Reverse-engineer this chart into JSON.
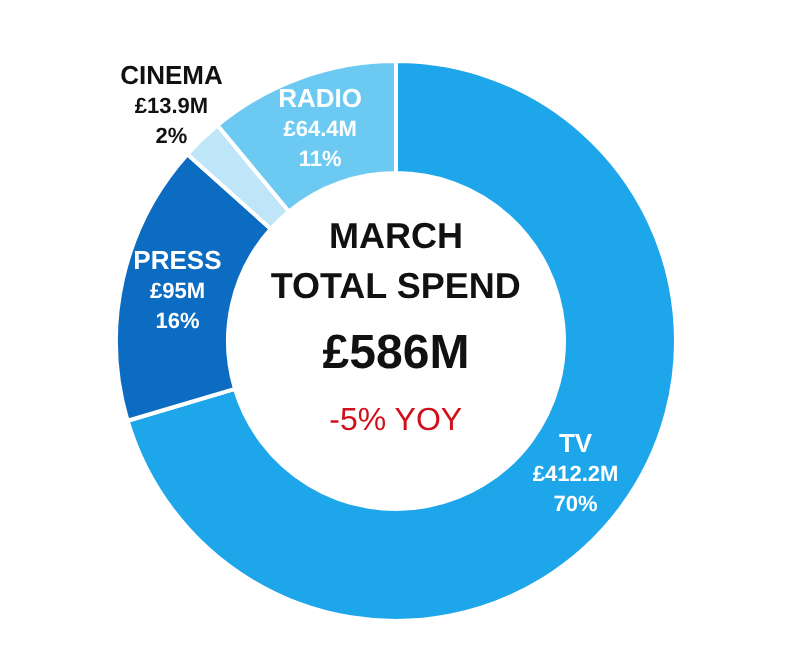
{
  "chart_data": {
    "type": "donut",
    "title": "MARCH\nTOTAL SPEND",
    "subtitle": "£586M",
    "annotations": [
      "-5% YOY",
      {
        "text": "70%",
        "x": "TV"
      },
      {
        "text": "16%",
        "x": "PRESS"
      },
      {
        "text": "2%",
        "x": "CINEMA"
      },
      {
        "text": "11%",
        "x": "RADIO"
      }
    ],
    "categories": [
      "TV",
      "PRESS",
      "CINEMA",
      "RADIO"
    ],
    "values": [
      412.2,
      95,
      13.9,
      64.4
    ],
    "value_labels": [
      "£412.2M",
      "£95M",
      "£13.9M",
      "£64.4M"
    ],
    "colors": [
      "#1ea6ea",
      "#0c6cc2",
      "#bfe6f8",
      "#6ccaf2"
    ],
    "legend": false
  }
}
